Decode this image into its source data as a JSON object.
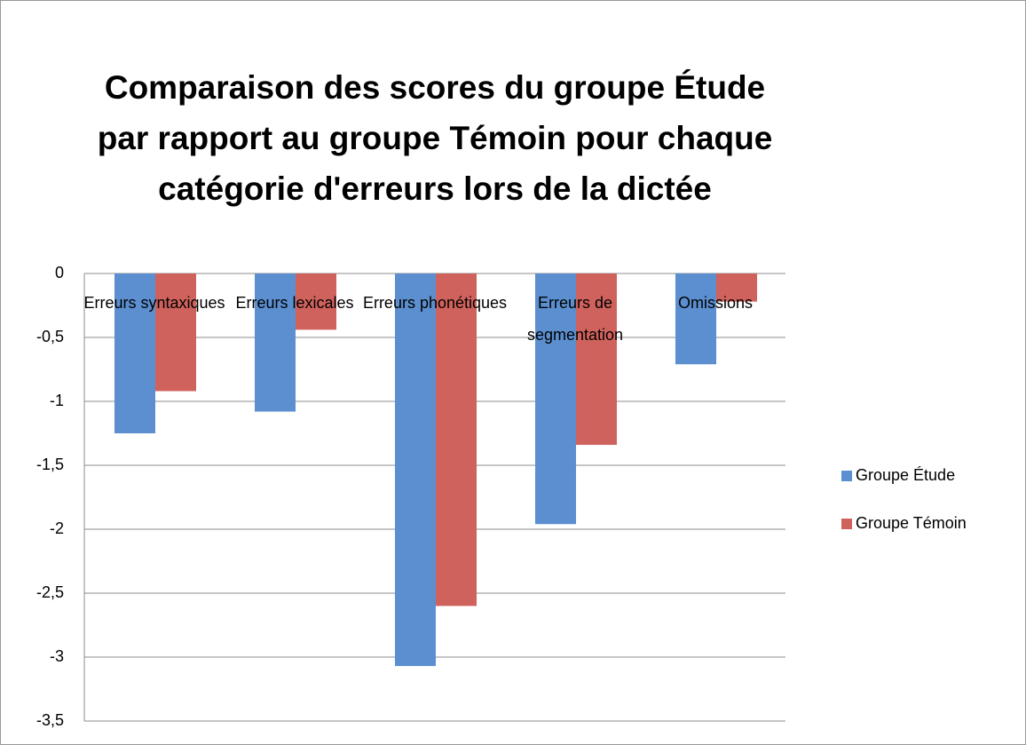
{
  "chart_data": {
    "type": "bar",
    "title": "Comparaison des scores du groupe Étude par rapport au groupe Témoin pour chaque catégorie d'erreurs lors de la dictée",
    "categories": [
      "Erreurs syntaxiques",
      "Erreurs lexicales",
      "Erreurs phonétiques",
      "Erreurs de segmentation",
      "Omissions"
    ],
    "series": [
      {
        "name": "Groupe Étude",
        "color": "#5b8fd0",
        "values": [
          -1.25,
          -1.08,
          -3.07,
          -1.96,
          -0.71
        ]
      },
      {
        "name": "Groupe Témoin",
        "color": "#d0625d",
        "values": [
          -0.92,
          -0.44,
          -2.6,
          -1.34,
          -0.22
        ]
      }
    ],
    "ylim": [
      -3.5,
      0
    ],
    "yticks": [
      0,
      {
        "value": -0.5,
        "label": "-0,5"
      },
      -1,
      {
        "value": -1.5,
        "label": "-1,5"
      },
      -2,
      {
        "value": -2.5,
        "label": "-2,5"
      },
      -3,
      {
        "value": -3.5,
        "label": "-3,5"
      }
    ],
    "grid": true,
    "legend": "right"
  }
}
